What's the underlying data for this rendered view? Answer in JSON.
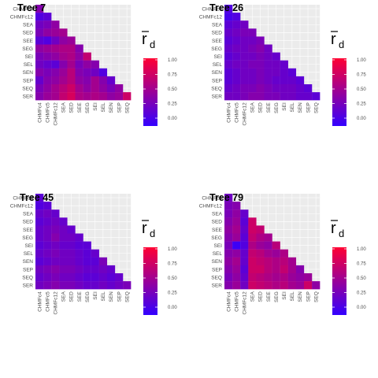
{
  "legend": {
    "symbol": "r",
    "subscript": "d",
    "ticks": [
      0.0,
      0.25,
      0.5,
      0.75,
      1.0
    ],
    "tick_labels": [
      "0.00",
      "0.25",
      "0.50",
      "0.75",
      "1.00"
    ],
    "low_color": "#3300ff",
    "high_color": "#ff0033",
    "panel_bg": "#ebebeb",
    "grid_color": "#ffffff"
  },
  "chart_data": [
    {
      "type": "heatmap",
      "title": "Tree 7",
      "y_categories": [
        "CHMFc4",
        "CHMFc12",
        "SEA",
        "SED",
        "SEE",
        "SEG",
        "SEI",
        "SEL",
        "SEN",
        "SEP",
        "SEQ",
        "SER"
      ],
      "x_categories": [
        "CHMFc4",
        "CHMFc5",
        "CHMFc12",
        "SEA",
        "SED",
        "SEE",
        "SEG",
        "SEI",
        "SEL",
        "SEN",
        "SEP",
        "SEQ"
      ],
      "rows": [
        [
          0.4
        ],
        [
          0.15,
          0.2
        ],
        [
          0.3,
          0.35,
          0.45
        ],
        [
          0.35,
          0.45,
          0.5,
          0.55
        ],
        [
          0.2,
          0.15,
          0.3,
          0.45,
          0.5
        ],
        [
          0.45,
          0.5,
          0.55,
          0.6,
          0.6,
          0.4
        ],
        [
          0.35,
          0.4,
          0.45,
          0.55,
          0.6,
          0.45,
          0.7
        ],
        [
          0.3,
          0.25,
          0.2,
          0.4,
          0.55,
          0.35,
          0.45,
          0.4
        ],
        [
          0.4,
          0.35,
          0.4,
          0.5,
          0.65,
          0.4,
          0.35,
          0.3,
          0.15
        ],
        [
          0.25,
          0.4,
          0.45,
          0.55,
          0.65,
          0.45,
          0.4,
          0.55,
          0.4,
          0.25
        ],
        [
          0.35,
          0.45,
          0.55,
          0.65,
          0.75,
          0.55,
          0.45,
          0.55,
          0.45,
          0.35,
          0.45
        ],
        [
          0.4,
          0.5,
          0.55,
          0.7,
          0.8,
          0.6,
          0.55,
          0.6,
          0.55,
          0.45,
          0.5,
          0.75
        ]
      ],
      "legend_position": "right"
    },
    {
      "type": "heatmap",
      "title": "Tree 26",
      "y_categories": [
        "CHMFc4",
        "CHMFc12",
        "SEA",
        "SED",
        "SEE",
        "SEG",
        "SEI",
        "SEL",
        "SEN",
        "SEP",
        "SEQ",
        "SER"
      ],
      "x_categories": [
        "CHMFc4",
        "CHMFc5",
        "CHMFc12",
        "SEA",
        "SED",
        "SEE",
        "SEG",
        "SEI",
        "SEL",
        "SEN",
        "SEP",
        "SEQ"
      ],
      "rows": [
        [
          0.15
        ],
        [
          0.1,
          0.15
        ],
        [
          0.2,
          0.25,
          0.3
        ],
        [
          0.25,
          0.3,
          0.35,
          0.35
        ],
        [
          0.2,
          0.25,
          0.3,
          0.3,
          0.35
        ],
        [
          0.25,
          0.3,
          0.3,
          0.35,
          0.4,
          0.3
        ],
        [
          0.2,
          0.25,
          0.3,
          0.3,
          0.35,
          0.3,
          0.25
        ],
        [
          0.25,
          0.3,
          0.3,
          0.35,
          0.35,
          0.3,
          0.3,
          0.25
        ],
        [
          0.2,
          0.25,
          0.3,
          0.3,
          0.35,
          0.3,
          0.3,
          0.25,
          0.2
        ],
        [
          0.2,
          0.25,
          0.3,
          0.3,
          0.35,
          0.3,
          0.25,
          0.25,
          0.25,
          0.2
        ],
        [
          0.25,
          0.3,
          0.35,
          0.35,
          0.4,
          0.35,
          0.3,
          0.3,
          0.3,
          0.25,
          0.2
        ],
        [
          0.3,
          0.3,
          0.35,
          0.4,
          0.4,
          0.35,
          0.35,
          0.3,
          0.3,
          0.25,
          0.25,
          0.2
        ]
      ],
      "legend_position": "right"
    },
    {
      "type": "heatmap",
      "title": "Tree 45",
      "y_categories": [
        "CHMFc4",
        "CHMFc12",
        "SEA",
        "SED",
        "SEE",
        "SEG",
        "SEI",
        "SEL",
        "SEN",
        "SEP",
        "SEQ",
        "SER"
      ],
      "x_categories": [
        "CHMFc4",
        "CHMFc5",
        "CHMFc12",
        "SEA",
        "SED",
        "SEE",
        "SEG",
        "SEI",
        "SEL",
        "SEN",
        "SEP",
        "SEQ"
      ],
      "rows": [
        [
          0.2
        ],
        [
          0.15,
          0.2
        ],
        [
          0.25,
          0.3,
          0.25
        ],
        [
          0.2,
          0.25,
          0.3,
          0.25
        ],
        [
          0.25,
          0.3,
          0.35,
          0.3,
          0.25
        ],
        [
          0.25,
          0.3,
          0.4,
          0.3,
          0.3,
          0.25
        ],
        [
          0.2,
          0.25,
          0.3,
          0.25,
          0.25,
          0.2,
          0.2
        ],
        [
          0.25,
          0.3,
          0.35,
          0.3,
          0.3,
          0.25,
          0.2,
          0.25
        ],
        [
          0.2,
          0.25,
          0.3,
          0.3,
          0.3,
          0.25,
          0.2,
          0.2,
          0.35
        ],
        [
          0.3,
          0.35,
          0.4,
          0.35,
          0.35,
          0.3,
          0.25,
          0.25,
          0.3,
          0.25
        ],
        [
          0.25,
          0.3,
          0.35,
          0.3,
          0.3,
          0.25,
          0.2,
          0.2,
          0.25,
          0.2,
          0.25
        ],
        [
          0.3,
          0.35,
          0.4,
          0.35,
          0.35,
          0.3,
          0.25,
          0.25,
          0.3,
          0.25,
          0.3,
          0.35
        ]
      ],
      "legend_position": "right"
    },
    {
      "type": "heatmap",
      "title": "Tree 79",
      "y_categories": [
        "CHMFc4",
        "CHMFc12",
        "SEA",
        "SED",
        "SEE",
        "SEG",
        "SEI",
        "SEL",
        "SEN",
        "SEP",
        "SEQ",
        "SER"
      ],
      "x_categories": [
        "CHMFc4",
        "CHMFc5",
        "CHMFc12",
        "SEA",
        "SED",
        "SEE",
        "SEG",
        "SEI",
        "SEL",
        "SEN",
        "SEP",
        "SEQ"
      ],
      "rows": [
        [
          0.3
        ],
        [
          0.35,
          0.4
        ],
        [
          0.35,
          0.45,
          0.25
        ],
        [
          0.4,
          0.5,
          0.2,
          0.75
        ],
        [
          0.45,
          0.55,
          0.25,
          0.75,
          0.7
        ],
        [
          0.4,
          0.5,
          0.2,
          0.7,
          0.6,
          0.55
        ],
        [
          0.35,
          0.05,
          0.15,
          0.6,
          0.5,
          0.45,
          0.65
        ],
        [
          0.4,
          0.45,
          0.25,
          0.7,
          0.65,
          0.55,
          0.5,
          0.6
        ],
        [
          0.45,
          0.55,
          0.25,
          0.75,
          0.7,
          0.65,
          0.6,
          0.65,
          0.55
        ],
        [
          0.4,
          0.5,
          0.2,
          0.75,
          0.75,
          0.65,
          0.6,
          0.7,
          0.55,
          0.4
        ],
        [
          0.35,
          0.45,
          0.25,
          0.7,
          0.65,
          0.6,
          0.55,
          0.6,
          0.5,
          0.45,
          0.5
        ],
        [
          0.4,
          0.5,
          0.3,
          0.75,
          0.7,
          0.65,
          0.6,
          0.65,
          0.55,
          0.5,
          0.75,
          0.45
        ]
      ],
      "legend_position": "right"
    }
  ]
}
